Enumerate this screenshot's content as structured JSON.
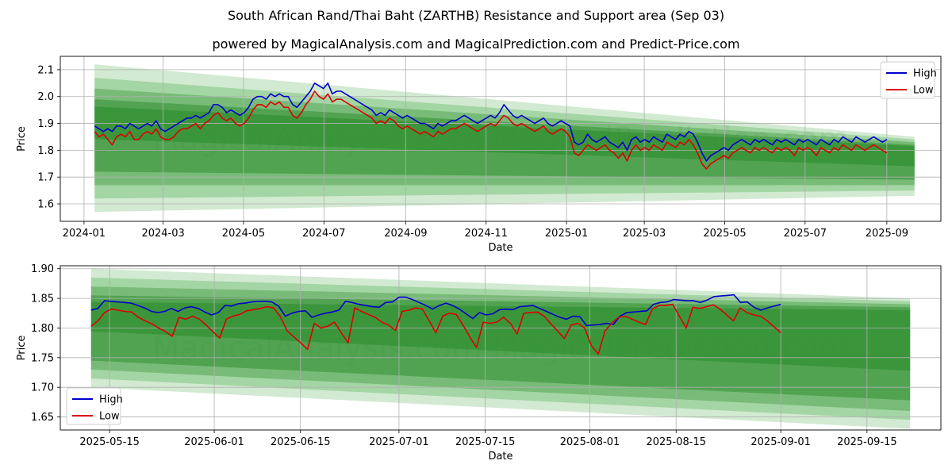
{
  "header": {
    "title": "South African Rand/Thai Baht (ZARTHB) Resistance and Support area (Sep 03)",
    "subtitle": "powered by MagicalAnalysis.com and MagicalPrediction.com and Predict-Price.com"
  },
  "watermark": "MagicalAnalysis.com    MagicalPrediction.com",
  "colors": {
    "high": "#0000cc",
    "low": "#dd0000",
    "band": "#2a8c2a",
    "band_light": "#2e9e2e",
    "grid": "#b0b0b0"
  },
  "chart_data": [
    {
      "type": "line",
      "id": "top",
      "xlabel": "Date",
      "ylabel": "Price",
      "x_start": "2024-01-09",
      "x_end": "2025-09-01",
      "forecast_end": "2025-09-22",
      "xlim": [
        "2023-12-14",
        "2025-10-12"
      ],
      "ylim": [
        1.535,
        2.15
      ],
      "x_ticks": [
        "2024-01",
        "2024-03",
        "2024-05",
        "2024-07",
        "2024-09",
        "2024-11",
        "2025-01",
        "2025-03",
        "2025-05",
        "2025-07",
        "2025-09"
      ],
      "x_tick_dates": [
        "2024-01-01",
        "2024-03-01",
        "2024-05-01",
        "2024-07-01",
        "2024-09-01",
        "2024-11-01",
        "2025-01-01",
        "2025-03-01",
        "2025-05-01",
        "2025-07-01",
        "2025-09-01"
      ],
      "y_ticks": [
        1.6,
        1.7,
        1.8,
        1.9,
        2.0,
        2.1
      ],
      "y_tick_labels": [
        "1.6",
        "1.7",
        "1.8",
        "1.9",
        "2.0",
        "2.1"
      ],
      "legend": [
        "High",
        "Low"
      ],
      "legend_position": "top-right",
      "band_start": {
        "upper": [
          2.12,
          2.07,
          2.03,
          1.99
        ],
        "lower": [
          1.57,
          1.62,
          1.67,
          1.72
        ]
      },
      "band_end": {
        "upper": [
          1.85,
          1.84,
          1.83,
          1.82
        ],
        "lower": [
          1.63,
          1.65,
          1.67,
          1.69
        ]
      },
      "series": [
        {
          "name": "High",
          "values": [
            1.89,
            1.88,
            1.87,
            1.88,
            1.87,
            1.89,
            1.89,
            1.88,
            1.9,
            1.89,
            1.88,
            1.89,
            1.9,
            1.89,
            1.91,
            1.88,
            1.87,
            1.88,
            1.89,
            1.9,
            1.91,
            1.92,
            1.92,
            1.93,
            1.92,
            1.93,
            1.94,
            1.97,
            1.97,
            1.96,
            1.94,
            1.95,
            1.94,
            1.93,
            1.94,
            1.96,
            1.99,
            2.0,
            2.0,
            1.99,
            2.01,
            2.0,
            2.01,
            2.0,
            2.0,
            1.97,
            1.96,
            1.98,
            2.0,
            2.02,
            2.05,
            2.04,
            2.03,
            2.05,
            2.01,
            2.02,
            2.02,
            2.01,
            2.0,
            1.99,
            1.98,
            1.97,
            1.96,
            1.95,
            1.93,
            1.94,
            1.93,
            1.95,
            1.94,
            1.93,
            1.92,
            1.93,
            1.92,
            1.91,
            1.9,
            1.9,
            1.89,
            1.88,
            1.9,
            1.89,
            1.9,
            1.91,
            1.91,
            1.92,
            1.93,
            1.92,
            1.91,
            1.9,
            1.91,
            1.92,
            1.93,
            1.92,
            1.94,
            1.97,
            1.95,
            1.93,
            1.92,
            1.93,
            1.92,
            1.91,
            1.9,
            1.91,
            1.92,
            1.9,
            1.89,
            1.9,
            1.91,
            1.9,
            1.89,
            1.83,
            1.82,
            1.83,
            1.86,
            1.84,
            1.83,
            1.84,
            1.85,
            1.83,
            1.82,
            1.81,
            1.83,
            1.8,
            1.84,
            1.85,
            1.83,
            1.84,
            1.83,
            1.85,
            1.84,
            1.83,
            1.86,
            1.85,
            1.84,
            1.86,
            1.85,
            1.87,
            1.86,
            1.83,
            1.79,
            1.76,
            1.78,
            1.79,
            1.8,
            1.81,
            1.8,
            1.82,
            1.83,
            1.84,
            1.83,
            1.82,
            1.84,
            1.83,
            1.84,
            1.83,
            1.82,
            1.84,
            1.83,
            1.84,
            1.83,
            1.82,
            1.84,
            1.83,
            1.84,
            1.83,
            1.82,
            1.84,
            1.83,
            1.82,
            1.84,
            1.83,
            1.85,
            1.84,
            1.83,
            1.85,
            1.84,
            1.83,
            1.84,
            1.85,
            1.84,
            1.83,
            1.84
          ]
        },
        {
          "name": "Low",
          "values": [
            1.87,
            1.85,
            1.86,
            1.84,
            1.82,
            1.85,
            1.86,
            1.85,
            1.87,
            1.84,
            1.84,
            1.86,
            1.87,
            1.86,
            1.88,
            1.85,
            1.84,
            1.84,
            1.85,
            1.87,
            1.88,
            1.88,
            1.89,
            1.9,
            1.88,
            1.9,
            1.91,
            1.93,
            1.94,
            1.92,
            1.91,
            1.92,
            1.9,
            1.89,
            1.9,
            1.92,
            1.95,
            1.97,
            1.97,
            1.96,
            1.98,
            1.97,
            1.98,
            1.96,
            1.96,
            1.93,
            1.92,
            1.94,
            1.97,
            1.99,
            2.02,
            2.0,
            1.99,
            2.01,
            1.98,
            1.99,
            1.99,
            1.98,
            1.97,
            1.96,
            1.95,
            1.94,
            1.93,
            1.92,
            1.9,
            1.91,
            1.9,
            1.92,
            1.91,
            1.89,
            1.88,
            1.89,
            1.88,
            1.87,
            1.86,
            1.87,
            1.86,
            1.85,
            1.87,
            1.86,
            1.87,
            1.88,
            1.88,
            1.89,
            1.9,
            1.89,
            1.88,
            1.87,
            1.88,
            1.89,
            1.9,
            1.89,
            1.91,
            1.93,
            1.92,
            1.9,
            1.89,
            1.9,
            1.89,
            1.88,
            1.87,
            1.88,
            1.89,
            1.87,
            1.86,
            1.87,
            1.88,
            1.87,
            1.85,
            1.79,
            1.78,
            1.8,
            1.82,
            1.81,
            1.8,
            1.81,
            1.82,
            1.8,
            1.79,
            1.77,
            1.79,
            1.76,
            1.8,
            1.82,
            1.8,
            1.81,
            1.8,
            1.82,
            1.81,
            1.8,
            1.83,
            1.82,
            1.81,
            1.83,
            1.82,
            1.84,
            1.82,
            1.79,
            1.75,
            1.73,
            1.75,
            1.76,
            1.77,
            1.78,
            1.77,
            1.79,
            1.8,
            1.81,
            1.8,
            1.79,
            1.81,
            1.8,
            1.81,
            1.8,
            1.79,
            1.81,
            1.8,
            1.81,
            1.8,
            1.78,
            1.81,
            1.8,
            1.81,
            1.8,
            1.78,
            1.81,
            1.8,
            1.79,
            1.81,
            1.8,
            1.82,
            1.81,
            1.8,
            1.82,
            1.81,
            1.8,
            1.81,
            1.82,
            1.81,
            1.8,
            1.79
          ]
        }
      ]
    },
    {
      "type": "line",
      "id": "bottom",
      "xlabel": "Date",
      "ylabel": "Price",
      "x_start": "2025-05-12",
      "x_end": "2025-09-01",
      "forecast_end": "2025-09-22",
      "xlim": [
        "2025-05-07",
        "2025-09-27"
      ],
      "ylim": [
        1.628,
        1.905
      ],
      "x_ticks": [
        "2025-05-15",
        "2025-06-01",
        "2025-06-15",
        "2025-07-01",
        "2025-07-15",
        "2025-08-01",
        "2025-08-15",
        "2025-09-01",
        "2025-09-15"
      ],
      "x_tick_dates": [
        "2025-05-15",
        "2025-06-01",
        "2025-06-15",
        "2025-07-01",
        "2025-07-15",
        "2025-08-01",
        "2025-08-15",
        "2025-09-01",
        "2025-09-15"
      ],
      "y_ticks": [
        1.65,
        1.7,
        1.75,
        1.8,
        1.85,
        1.9
      ],
      "y_tick_labels": [
        "1.65",
        "1.70",
        "1.75",
        "1.80",
        "1.85",
        "1.90"
      ],
      "legend": [
        "High",
        "Low"
      ],
      "legend_position": "bottom-left",
      "band_start": {
        "upper": [
          1.9,
          1.885,
          1.87,
          1.855
        ],
        "lower": [
          1.7,
          1.715,
          1.73,
          1.745
        ]
      },
      "band_end": {
        "upper": [
          1.85,
          1.845,
          1.84,
          1.835
        ],
        "lower": [
          1.63,
          1.645,
          1.66,
          1.678
        ]
      },
      "series": [
        {
          "name": "High",
          "values": [
            1.83,
            1.833,
            1.846,
            1.845,
            1.844,
            1.843,
            1.842,
            1.838,
            1.834,
            1.828,
            1.826,
            1.828,
            1.833,
            1.828,
            1.834,
            1.836,
            1.833,
            1.827,
            1.822,
            1.826,
            1.838,
            1.837,
            1.841,
            1.842,
            1.844,
            1.845,
            1.845,
            1.844,
            1.837,
            1.82,
            1.825,
            1.828,
            1.829,
            1.818,
            1.822,
            1.825,
            1.827,
            1.83,
            1.845,
            1.843,
            1.84,
            1.838,
            1.836,
            1.835,
            1.843,
            1.844,
            1.852,
            1.852,
            1.848,
            1.843,
            1.838,
            1.832,
            1.838,
            1.842,
            1.838,
            1.832,
            1.824,
            1.816,
            1.826,
            1.822,
            1.824,
            1.831,
            1.832,
            1.831,
            1.836,
            1.837,
            1.838,
            1.833,
            1.828,
            1.823,
            1.818,
            1.815,
            1.82,
            1.819,
            1.804,
            1.805,
            1.806,
            1.808,
            1.806,
            1.82,
            1.826,
            1.827,
            1.828,
            1.829,
            1.84,
            1.843,
            1.844,
            1.848,
            1.847,
            1.846,
            1.846,
            1.843,
            1.847,
            1.853,
            1.854,
            1.855,
            1.856,
            1.843,
            1.844,
            1.835,
            1.83,
            1.834,
            1.837,
            1.84
          ]
        },
        {
          "name": "Low",
          "values": [
            1.803,
            1.812,
            1.826,
            1.832,
            1.83,
            1.828,
            1.827,
            1.818,
            1.812,
            1.807,
            1.8,
            1.794,
            1.786,
            1.818,
            1.815,
            1.82,
            1.815,
            1.805,
            1.794,
            1.783,
            1.815,
            1.82,
            1.823,
            1.829,
            1.831,
            1.833,
            1.836,
            1.834,
            1.819,
            1.795,
            1.785,
            1.775,
            1.764,
            1.808,
            1.8,
            1.803,
            1.81,
            1.792,
            1.775,
            1.834,
            1.828,
            1.823,
            1.818,
            1.81,
            1.805,
            1.796,
            1.828,
            1.83,
            1.834,
            1.832,
            1.812,
            1.792,
            1.82,
            1.825,
            1.823,
            1.805,
            1.785,
            1.767,
            1.81,
            1.808,
            1.81,
            1.818,
            1.808,
            1.79,
            1.825,
            1.826,
            1.827,
            1.82,
            1.807,
            1.795,
            1.782,
            1.805,
            1.808,
            1.8,
            1.77,
            1.756,
            1.795,
            1.808,
            1.818,
            1.82,
            1.815,
            1.81,
            1.806,
            1.832,
            1.838,
            1.838,
            1.84,
            1.82,
            1.8,
            1.835,
            1.833,
            1.836,
            1.839,
            1.832,
            1.822,
            1.812,
            1.834,
            1.826,
            1.822,
            1.82,
            1.812,
            1.802,
            1.792
          ]
        }
      ]
    }
  ]
}
